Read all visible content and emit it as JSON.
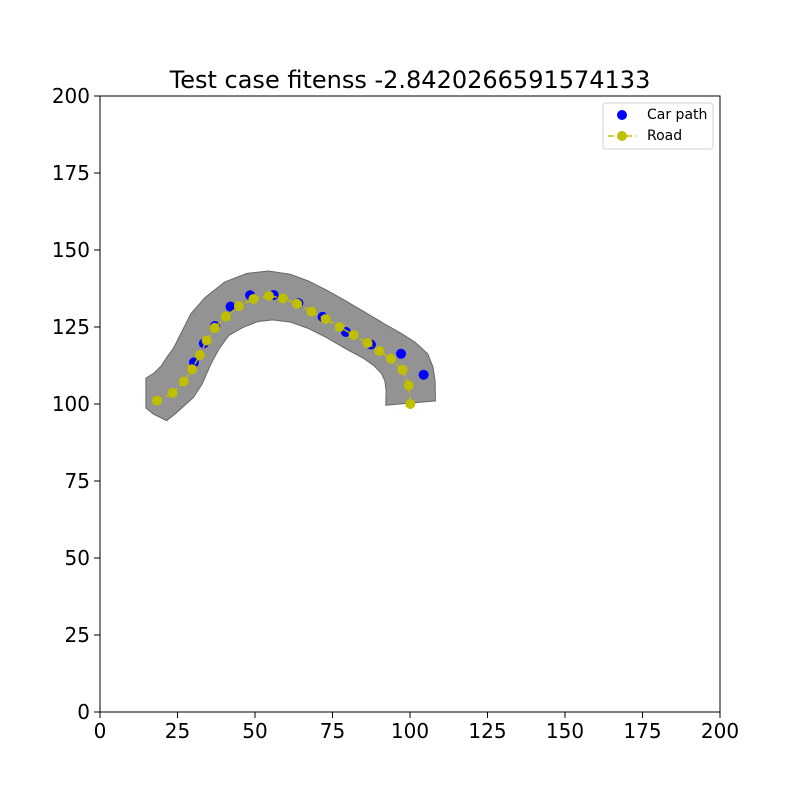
{
  "chart_data": {
    "type": "scatter",
    "title": "Test case fitenss -2.8420266591574133",
    "xlabel": "",
    "ylabel": "",
    "xlim": [
      0,
      200
    ],
    "ylim": [
      0,
      200
    ],
    "x_ticks": [
      "0",
      "25",
      "50",
      "75",
      "100",
      "125",
      "150",
      "175",
      "200"
    ],
    "y_ticks": [
      "0",
      "25",
      "50",
      "75",
      "100",
      "125",
      "150",
      "175",
      "200"
    ],
    "grid": false,
    "legend_position": "top-right",
    "road_area": {
      "color": "#808080",
      "polygon": [
        [
          14.8,
          108.4
        ],
        [
          17.5,
          110.1
        ],
        [
          19.7,
          112.3
        ],
        [
          21.6,
          115.2
        ],
        [
          23.8,
          118.3
        ],
        [
          26.2,
          123.1
        ],
        [
          29.3,
          129.3
        ],
        [
          33.9,
          134.6
        ],
        [
          40.2,
          139.6
        ],
        [
          47.4,
          142.4
        ],
        [
          54.4,
          143.2
        ],
        [
          61.5,
          142.1
        ],
        [
          67.3,
          139.9
        ],
        [
          73.2,
          136.9
        ],
        [
          79.1,
          133.6
        ],
        [
          85.1,
          130.0
        ],
        [
          91.3,
          126.3
        ],
        [
          97.4,
          122.8
        ],
        [
          101.7,
          120.0
        ],
        [
          105.7,
          116.3
        ],
        [
          107.4,
          112.0
        ],
        [
          108.1,
          107.5
        ],
        [
          108.2,
          101.0
        ],
        [
          92.2,
          99.6
        ],
        [
          92.3,
          104.2
        ],
        [
          91.9,
          107.5
        ],
        [
          90.8,
          109.9
        ],
        [
          88.4,
          112.4
        ],
        [
          85.2,
          114.7
        ],
        [
          79.5,
          117.8
        ],
        [
          73.0,
          121.6
        ],
        [
          67.0,
          124.6
        ],
        [
          61.4,
          126.6
        ],
        [
          55.8,
          127.3
        ],
        [
          51.0,
          126.8
        ],
        [
          46.2,
          124.9
        ],
        [
          41.6,
          122.3
        ],
        [
          38.4,
          117.9
        ],
        [
          35.7,
          112.8
        ],
        [
          32.9,
          106.4
        ],
        [
          30.1,
          102.1
        ],
        [
          24.6,
          97.1
        ],
        [
          21.5,
          94.6
        ],
        [
          17.3,
          96.7
        ],
        [
          14.8,
          98.7
        ]
      ]
    },
    "series": [
      {
        "name": "Car path",
        "marker": "circle",
        "color": "#0000ff",
        "line": false,
        "points": [
          [
            30.3,
            113.5
          ],
          [
            33.5,
            119.7
          ],
          [
            37.1,
            125.3
          ],
          [
            42.1,
            131.6
          ],
          [
            48.4,
            135.3
          ],
          [
            56.0,
            135.4
          ],
          [
            64.0,
            132.7
          ],
          [
            71.8,
            128.3
          ],
          [
            79.3,
            123.4
          ],
          [
            87.4,
            119.3
          ],
          [
            97.1,
            116.3
          ],
          [
            104.4,
            109.5
          ]
        ]
      },
      {
        "name": "Road",
        "marker": "circle",
        "color": "#bfbf00",
        "line": true,
        "line_style": "dashed",
        "points": [
          [
            18.4,
            101.1
          ],
          [
            23.4,
            103.6
          ],
          [
            27.0,
            107.3
          ],
          [
            29.7,
            111.3
          ],
          [
            32.2,
            115.9
          ],
          [
            34.4,
            120.6
          ],
          [
            37.0,
            124.7
          ],
          [
            40.6,
            128.4
          ],
          [
            44.8,
            131.8
          ],
          [
            49.5,
            134.1
          ],
          [
            54.5,
            135.1
          ],
          [
            59.0,
            134.3
          ],
          [
            63.6,
            132.5
          ],
          [
            68.2,
            130.0
          ],
          [
            72.8,
            127.6
          ],
          [
            77.3,
            125.0
          ],
          [
            81.8,
            122.4
          ],
          [
            86.3,
            119.8
          ],
          [
            90.1,
            117.2
          ],
          [
            93.9,
            114.7
          ],
          [
            97.6,
            111.1
          ],
          [
            99.6,
            106.0
          ],
          [
            100.1,
            100.0
          ]
        ]
      }
    ]
  }
}
